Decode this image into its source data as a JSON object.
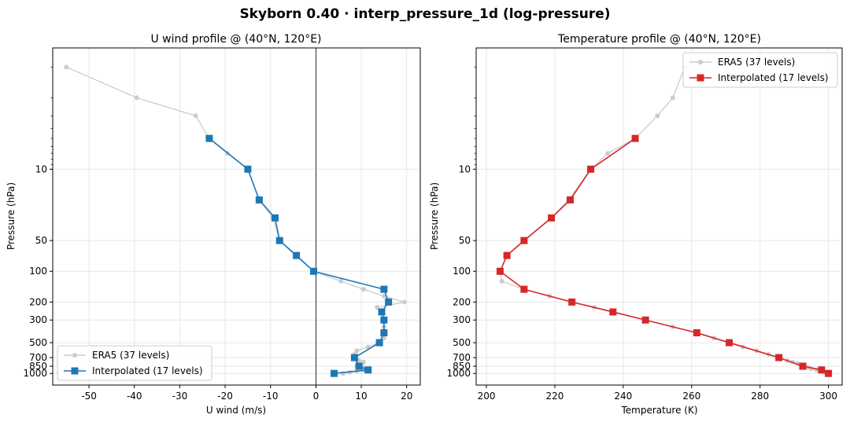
{
  "figure_title": "Skyborn 0.40 · interp_pressure_1d (log-pressure)",
  "colors": {
    "era5": "#cccccc",
    "wind": "#1f77b4",
    "temp": "#d62728",
    "grid": "#e6e6e6"
  },
  "chart_data": [
    {
      "type": "line",
      "title": "U wind profile @ (40°N, 120°E)",
      "xlabel": "U wind (m/s)",
      "ylabel": "Pressure (hPa)",
      "xlim": [
        -58,
        23
      ],
      "ylim": [
        1300,
        0.65
      ],
      "yscale": "log",
      "y_inverted": true,
      "grid": true,
      "zero_line": true,
      "legend": "lower-left",
      "xticks": [
        -50,
        -40,
        -30,
        -20,
        -10,
        0,
        10,
        20
      ],
      "yticks": [
        10,
        50,
        100,
        200,
        300,
        500,
        700,
        850,
        1000
      ],
      "series": [
        {
          "name": "ERA5 (37 levels)",
          "style": "era5",
          "points": [
            [
              -55,
              1
            ],
            [
              -39.5,
              2
            ],
            [
              -26.5,
              3
            ],
            [
              -23.5,
              5
            ],
            [
              -19.5,
              7
            ],
            [
              -15,
              10
            ],
            [
              -12.5,
              20
            ],
            [
              -9.5,
              30
            ],
            [
              -8,
              50
            ],
            [
              -4.5,
              70
            ],
            [
              -0.5,
              100
            ],
            [
              5.5,
              125
            ],
            [
              10.5,
              150
            ],
            [
              15,
              175
            ],
            [
              19.5,
              200
            ],
            [
              13.5,
              225
            ],
            [
              14.5,
              250
            ],
            [
              15,
              300
            ],
            [
              15,
              350
            ],
            [
              15,
              400
            ],
            [
              15,
              450
            ],
            [
              14,
              500
            ],
            [
              11.5,
              550
            ],
            [
              9,
              600
            ],
            [
              8.5,
              650
            ],
            [
              8.5,
              700
            ],
            [
              9.5,
              750
            ],
            [
              10.5,
              775
            ],
            [
              10,
              800
            ],
            [
              9.5,
              825
            ],
            [
              9,
              850
            ],
            [
              10.5,
              875
            ],
            [
              11.5,
              900
            ],
            [
              10.5,
              925
            ],
            [
              9,
              950
            ],
            [
              7.5,
              975
            ],
            [
              6,
              1000
            ]
          ]
        },
        {
          "name": "Interpolated (17 levels)",
          "style": "wind",
          "points": [
            [
              -23.5,
              5
            ],
            [
              -15,
              10
            ],
            [
              -12.5,
              20
            ],
            [
              -9,
              30
            ],
            [
              -8,
              50
            ],
            [
              -4.3,
              70
            ],
            [
              -0.5,
              100
            ],
            [
              15,
              150
            ],
            [
              16,
              200
            ],
            [
              14.5,
              250
            ],
            [
              15,
              300
            ],
            [
              15,
              400
            ],
            [
              14,
              500
            ],
            [
              8.5,
              700
            ],
            [
              9.5,
              850
            ],
            [
              11.5,
              925
            ],
            [
              4,
              1000
            ]
          ]
        }
      ]
    },
    {
      "type": "line",
      "title": "Temperature profile @ (40°N, 120°E)",
      "xlabel": "Temperature (K)",
      "ylabel": "Pressure (hPa)",
      "xlim": [
        197,
        304
      ],
      "ylim": [
        1300,
        0.65
      ],
      "yscale": "log",
      "y_inverted": true,
      "grid": true,
      "zero_line": false,
      "legend": "upper-right",
      "xticks": [
        200,
        220,
        240,
        260,
        280,
        300
      ],
      "yticks": [
        10,
        50,
        100,
        200,
        300,
        500,
        700,
        850,
        1000
      ],
      "series": [
        {
          "name": "ERA5 (37 levels)",
          "style": "era5",
          "points": [
            [
              258,
              1
            ],
            [
              254.5,
              2
            ],
            [
              250,
              3
            ],
            [
              243.5,
              5
            ],
            [
              235.5,
              7
            ],
            [
              230.5,
              10
            ],
            [
              224,
              20
            ],
            [
              219,
              30
            ],
            [
              211,
              50
            ],
            [
              206,
              70
            ],
            [
              204,
              100
            ],
            [
              204.5,
              125
            ],
            [
              211,
              150
            ],
            [
              218.5,
              175
            ],
            [
              225,
              200
            ],
            [
              231.5,
              225
            ],
            [
              237,
              250
            ],
            [
              246.5,
              300
            ],
            [
              254.5,
              350
            ],
            [
              261.5,
              400
            ],
            [
              266.5,
              450
            ],
            [
              271,
              500
            ],
            [
              275,
              550
            ],
            [
              279,
              600
            ],
            [
              282.5,
              650
            ],
            [
              285.5,
              700
            ],
            [
              288,
              750
            ],
            [
              289.5,
              775
            ],
            [
              291,
              800
            ],
            [
              292.5,
              825
            ],
            [
              293,
              850
            ],
            [
              294,
              875
            ],
            [
              295,
              900
            ],
            [
              296.5,
              925
            ],
            [
              297.5,
              950
            ],
            [
              299,
              975
            ],
            [
              300,
              1000
            ]
          ]
        },
        {
          "name": "Interpolated (17 levels)",
          "style": "temp",
          "points": [
            [
              243.5,
              5
            ],
            [
              230.5,
              10
            ],
            [
              224.5,
              20
            ],
            [
              219,
              30
            ],
            [
              211,
              50
            ],
            [
              206,
              70
            ],
            [
              204,
              100
            ],
            [
              211,
              150
            ],
            [
              225,
              200
            ],
            [
              237,
              250
            ],
            [
              246.5,
              300
            ],
            [
              261.5,
              400
            ],
            [
              271,
              500
            ],
            [
              285.5,
              700
            ],
            [
              292.5,
              850
            ],
            [
              298,
              925
            ],
            [
              300,
              1000
            ]
          ]
        }
      ]
    }
  ]
}
